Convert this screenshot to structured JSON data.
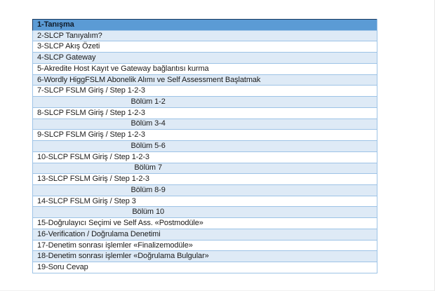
{
  "colors": {
    "header_bg": "#5B9BD5",
    "header_border": "#17375E",
    "header_text": "#101c2b",
    "band_bg": "#DEEAF6",
    "row_bg": "#FFFFFF",
    "border": "#9DC3E6",
    "text": "#1A1A1A"
  },
  "table": {
    "rows": [
      {
        "type": "header",
        "label": "1-Tanışma"
      },
      {
        "type": "banded",
        "label": "2-SLCP Tanıyalım?"
      },
      {
        "type": "plain",
        "label": "3-SLCP Akış Özeti"
      },
      {
        "type": "banded",
        "label": "4-SLCP Gateway"
      },
      {
        "type": "plain",
        "label": "5-Akredite Host Kayıt ve Gateway bağlantısı kurma"
      },
      {
        "type": "banded",
        "label": "6-Wordly HiggFSLM Abonelik Alımı ve Self Assessment Başlatmak"
      },
      {
        "type": "plain",
        "label": "7-SLCP FSLM Giriş / Step 1-2-3"
      },
      {
        "type": "section",
        "label": "Bölüm 1-2"
      },
      {
        "type": "plain",
        "label": "8-SLCP FSLM Giriş / Step 1-2-3"
      },
      {
        "type": "section",
        "label": "Bölüm 3-4"
      },
      {
        "type": "plain",
        "label": "9-SLCP FSLM Giriş / Step 1-2-3"
      },
      {
        "type": "section",
        "label": "Bölüm 5-6"
      },
      {
        "type": "plain",
        "label": "10-SLCP FSLM Giriş / Step 1-2-3"
      },
      {
        "type": "section",
        "label": "Bölüm 7"
      },
      {
        "type": "plain",
        "label": "13-SLCP FSLM Giriş / Step 1-2-3"
      },
      {
        "type": "section",
        "label": "Bölüm 8-9"
      },
      {
        "type": "plain",
        "label": "14-SLCP FSLM Giriş / Step 3"
      },
      {
        "type": "section",
        "label": "Bölüm 10"
      },
      {
        "type": "plain",
        "label": "15-Doğrulayıcı Seçimi ve Self Ass. «Postmodüle»"
      },
      {
        "type": "banded",
        "label": "16-Verification / Doğrulama Denetimi"
      },
      {
        "type": "plain",
        "label": "17-Denetim sonrası işlemler «Finalizemodüle»"
      },
      {
        "type": "banded",
        "label": "18-Denetim sonrası işlemler «Doğrulama Bulgular»"
      },
      {
        "type": "plain",
        "label": "19-Soru Cevap"
      }
    ]
  }
}
